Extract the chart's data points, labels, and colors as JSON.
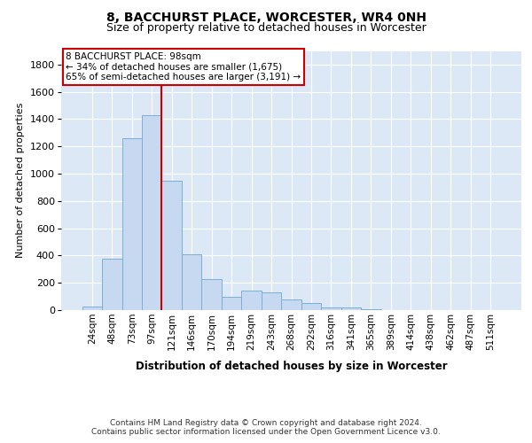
{
  "title": "8, BACCHURST PLACE, WORCESTER, WR4 0NH",
  "subtitle": "Size of property relative to detached houses in Worcester",
  "xlabel": "Distribution of detached houses by size in Worcester",
  "ylabel": "Number of detached properties",
  "bar_color": "#c6d9f1",
  "bar_edge_color": "#7bafd4",
  "background_color": "#dce8f5",
  "grid_color": "#ffffff",
  "annotation_line_color": "#cc0000",
  "annotation_box_color": "#cc0000",
  "footer_line1": "Contains HM Land Registry data © Crown copyright and database right 2024.",
  "footer_line2": "Contains public sector information licensed under the Open Government Licence v3.0.",
  "annotation_line1": "8 BACCHURST PLACE: 98sqm",
  "annotation_line2": "← 34% of detached houses are smaller (1,675)",
  "annotation_line3": "65% of semi-detached houses are larger (3,191) →",
  "categories": [
    "24sqm",
    "48sqm",
    "73sqm",
    "97sqm",
    "121sqm",
    "146sqm",
    "170sqm",
    "194sqm",
    "219sqm",
    "243sqm",
    "268sqm",
    "292sqm",
    "316sqm",
    "341sqm",
    "365sqm",
    "389sqm",
    "414sqm",
    "438sqm",
    "462sqm",
    "487sqm",
    "511sqm"
  ],
  "values": [
    25,
    375,
    1260,
    1430,
    950,
    410,
    230,
    100,
    140,
    130,
    75,
    55,
    20,
    20,
    5,
    0,
    0,
    0,
    0,
    0,
    0
  ],
  "ylim": [
    0,
    1900
  ],
  "yticks": [
    0,
    200,
    400,
    600,
    800,
    1000,
    1200,
    1400,
    1600,
    1800
  ],
  "prop_bar_index": 3,
  "title_fontsize": 10,
  "subtitle_fontsize": 9
}
